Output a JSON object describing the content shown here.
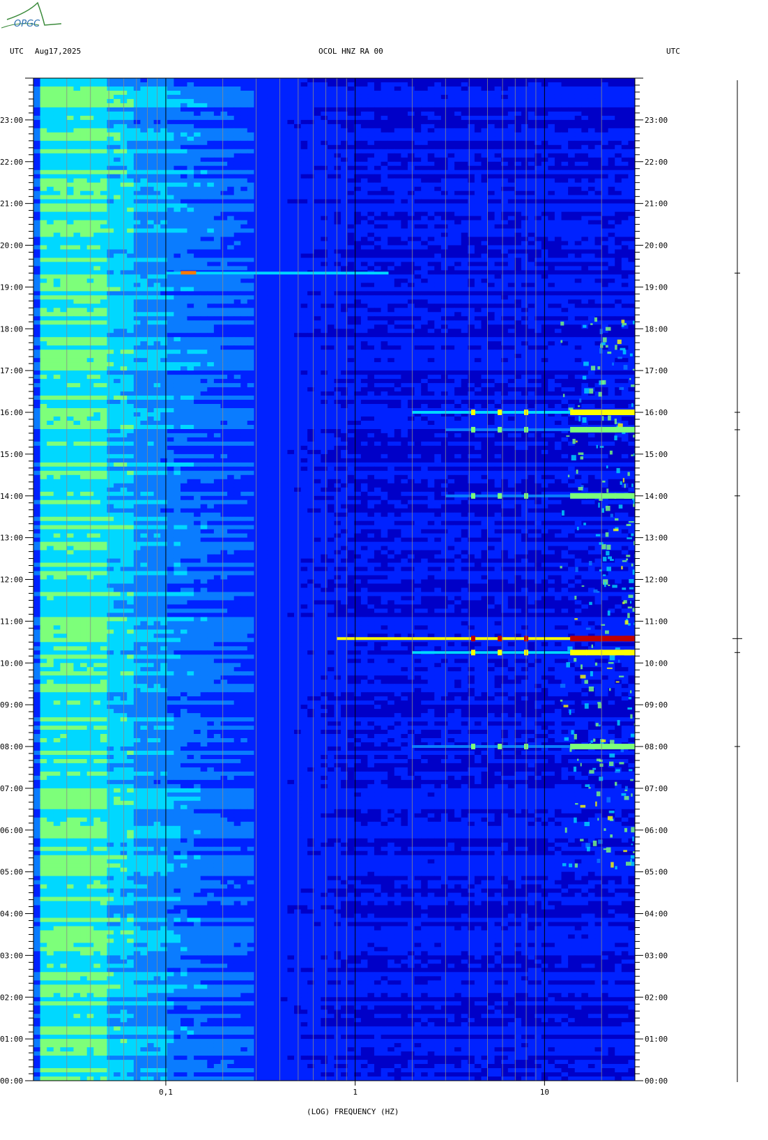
{
  "header": {
    "logo_text": "OPGC",
    "left_tz": "UTC",
    "date": "Aug17,2025",
    "station": "OCOL HNZ RA 00",
    "right_tz": "UTC"
  },
  "chart_data": {
    "type": "heatmap",
    "title": "OCOL HNZ RA 00",
    "xlabel": "(LOG) FREQUENCY (HZ)",
    "ylabel": "UTC",
    "x_scale": "log",
    "xlim": [
      0.02,
      30
    ],
    "x_ticks": [
      {
        "value": 0.1,
        "label": "0,1"
      },
      {
        "value": 1,
        "label": "1"
      },
      {
        "value": 10,
        "label": "10"
      }
    ],
    "y_ticks": [
      "23:00",
      "22:00",
      "21:00",
      "20:00",
      "19:00",
      "18:00",
      "17:00",
      "16:00",
      "15:00",
      "14:00",
      "13:00",
      "12:00",
      "11:00",
      "10:00",
      "09:00",
      "08:00",
      "07:00",
      "06:00",
      "05:00",
      "04:00",
      "03:00",
      "02:00",
      "01:00",
      "00:00"
    ],
    "ylim_hours": [
      0,
      24
    ],
    "colormap": [
      "#0000c8",
      "#0022ff",
      "#0a7cff",
      "#00d8ff",
      "#7dff7a",
      "#ffff00",
      "#ff7a00",
      "#c00000"
    ],
    "events": [
      {
        "time": "19:20",
        "fmin": 0.1,
        "fmax": 1.5,
        "level": "strong near 0.12 Hz"
      },
      {
        "time": "16:00",
        "fmin": 2,
        "fmax": 30,
        "level": "strong"
      },
      {
        "time": "15:35",
        "fmin": 3,
        "fmax": 30,
        "level": "moderate"
      },
      {
        "time": "14:00",
        "fmin": 3,
        "fmax": 30,
        "level": "moderate"
      },
      {
        "time": "10:35",
        "fmin": 0.8,
        "fmax": 30,
        "level": "very strong"
      },
      {
        "time": "10:15",
        "fmin": 2,
        "fmax": 30,
        "level": "strong"
      },
      {
        "time": "08:00",
        "fmin": 2,
        "fmax": 30,
        "level": "moderate"
      }
    ]
  }
}
